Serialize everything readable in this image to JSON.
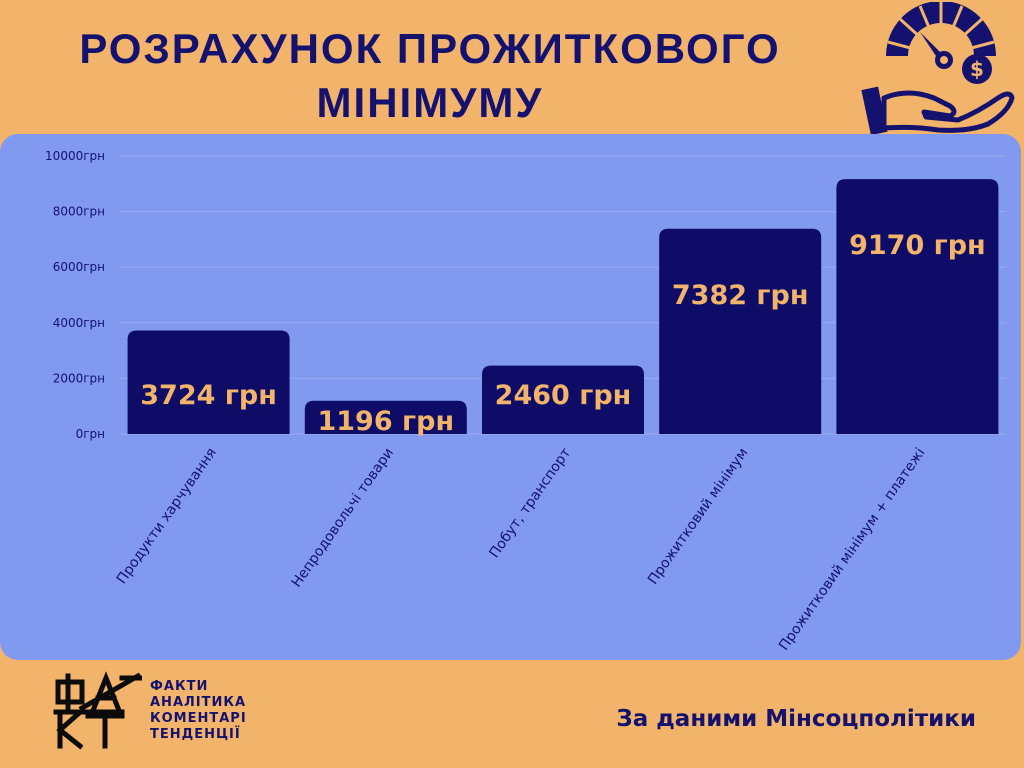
{
  "header": {
    "title_line1": "РОЗРАХУНОК ПРОЖИТКОВОГО",
    "title_line2": "МІНІМУМУ",
    "icon": "gauge-hand-money-icon"
  },
  "chart_data": {
    "type": "bar",
    "categories": [
      "Продукти харчування",
      "Непродовольчі товари",
      "Побут, транспорт",
      "Прожитковий мінімум",
      "Прожитковий мінімум + платежі"
    ],
    "values": [
      3724,
      1196,
      2460,
      7382,
      9170
    ],
    "data_labels": [
      "3724 грн",
      "1196 грн",
      "2460 грн",
      "7382 грн",
      "9170 грн"
    ],
    "y_ticks": [
      0,
      2000,
      4000,
      6000,
      8000,
      10000
    ],
    "y_tick_labels": [
      "0грн",
      "2000грн",
      "4000грн",
      "6000грн",
      "8000грн",
      "10000грн"
    ],
    "ylim": [
      0,
      10000
    ],
    "grid": true,
    "colors": {
      "bar": "#0E0C66",
      "value_label": "#F2B36B",
      "gridline": "#9AAAF0",
      "panel": "#8299F0",
      "axis_text": "#14126E"
    }
  },
  "footer": {
    "logo_text": "ФАКТ",
    "brand_lines": [
      "ФАКТИ",
      "АНАЛІТИКА",
      "КОМЕНТАРІ",
      "ТЕНДЕНЦІЇ"
    ],
    "source": "За даними Мінсоцполітики"
  },
  "colors": {
    "background": "#F2B36B",
    "navy": "#14126E"
  }
}
